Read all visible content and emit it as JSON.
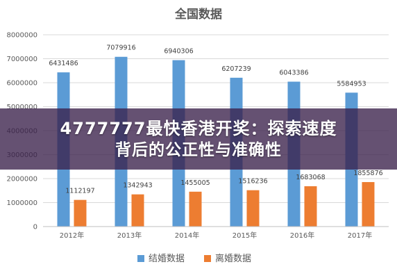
{
  "banner": {
    "line1": "4777777最快香港开奖：探索速度",
    "line2": "背后的公正性与准确性"
  },
  "chart_data": {
    "type": "bar",
    "title": "全国数据",
    "categories": [
      "2012年",
      "2013年",
      "2014年",
      "2015年",
      "2016年",
      "2017年"
    ],
    "ylim": [
      0,
      8000000
    ],
    "yticks": [
      0,
      1000000,
      2000000,
      3000000,
      4000000,
      5000000,
      6000000,
      7000000,
      8000000
    ],
    "ytick_labels": [
      "0",
      "1000000",
      "2000000",
      "3000000",
      "4000000",
      "5000000",
      "6000000",
      "7000000",
      "8000000"
    ],
    "grid": true,
    "legend_position": "bottom",
    "series": [
      {
        "name": "结婚数据",
        "color": "#5B9BD5",
        "values": [
          6431486,
          7079916,
          6940306,
          6207239,
          6043386,
          5584953
        ],
        "labels": [
          "6431486",
          "7079916",
          "6940306",
          "6207239",
          "6043386",
          "5584953"
        ]
      },
      {
        "name": "离婚数据",
        "color": "#ED7D31",
        "values": [
          1112197,
          1342943,
          1455005,
          1516236,
          1683068,
          1855876
        ],
        "labels": [
          "1112197",
          "1342943",
          "1455005",
          "1516236",
          "1683068",
          "1855876"
        ]
      }
    ]
  }
}
